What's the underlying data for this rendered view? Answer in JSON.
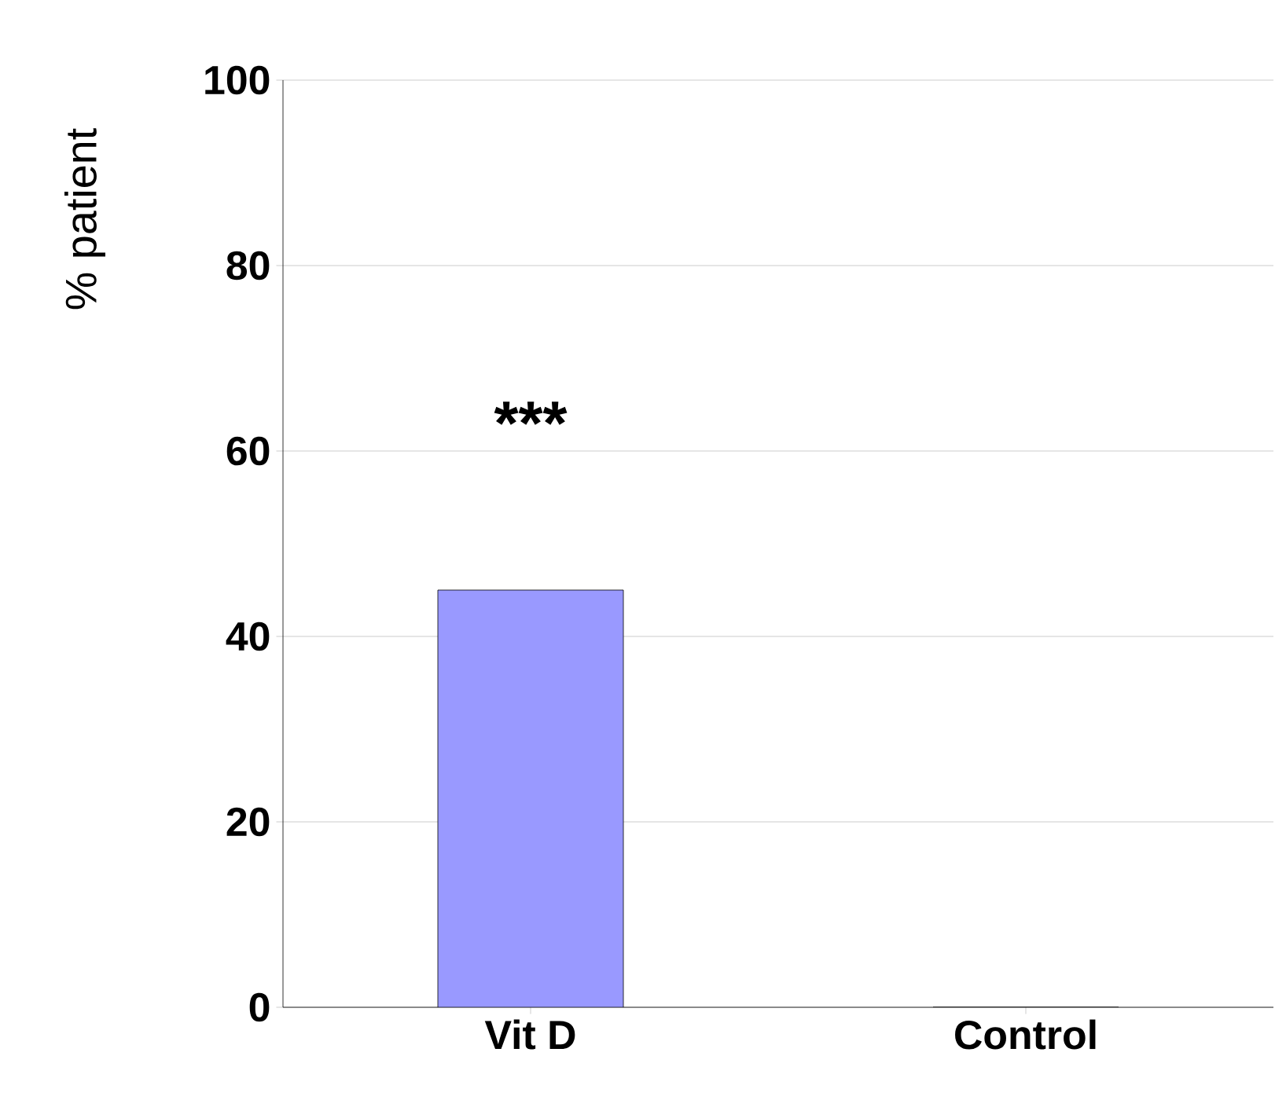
{
  "chart_data": {
    "type": "bar",
    "ylabel": "% patient",
    "categories": [
      "Vit D",
      "Control"
    ],
    "values": [
      45,
      0
    ],
    "color": "#9999ff",
    "ylim": [
      0,
      100
    ],
    "yticks": [
      0,
      20,
      40,
      60,
      80,
      100
    ],
    "grid": "y",
    "annotations": [
      "***"
    ]
  }
}
